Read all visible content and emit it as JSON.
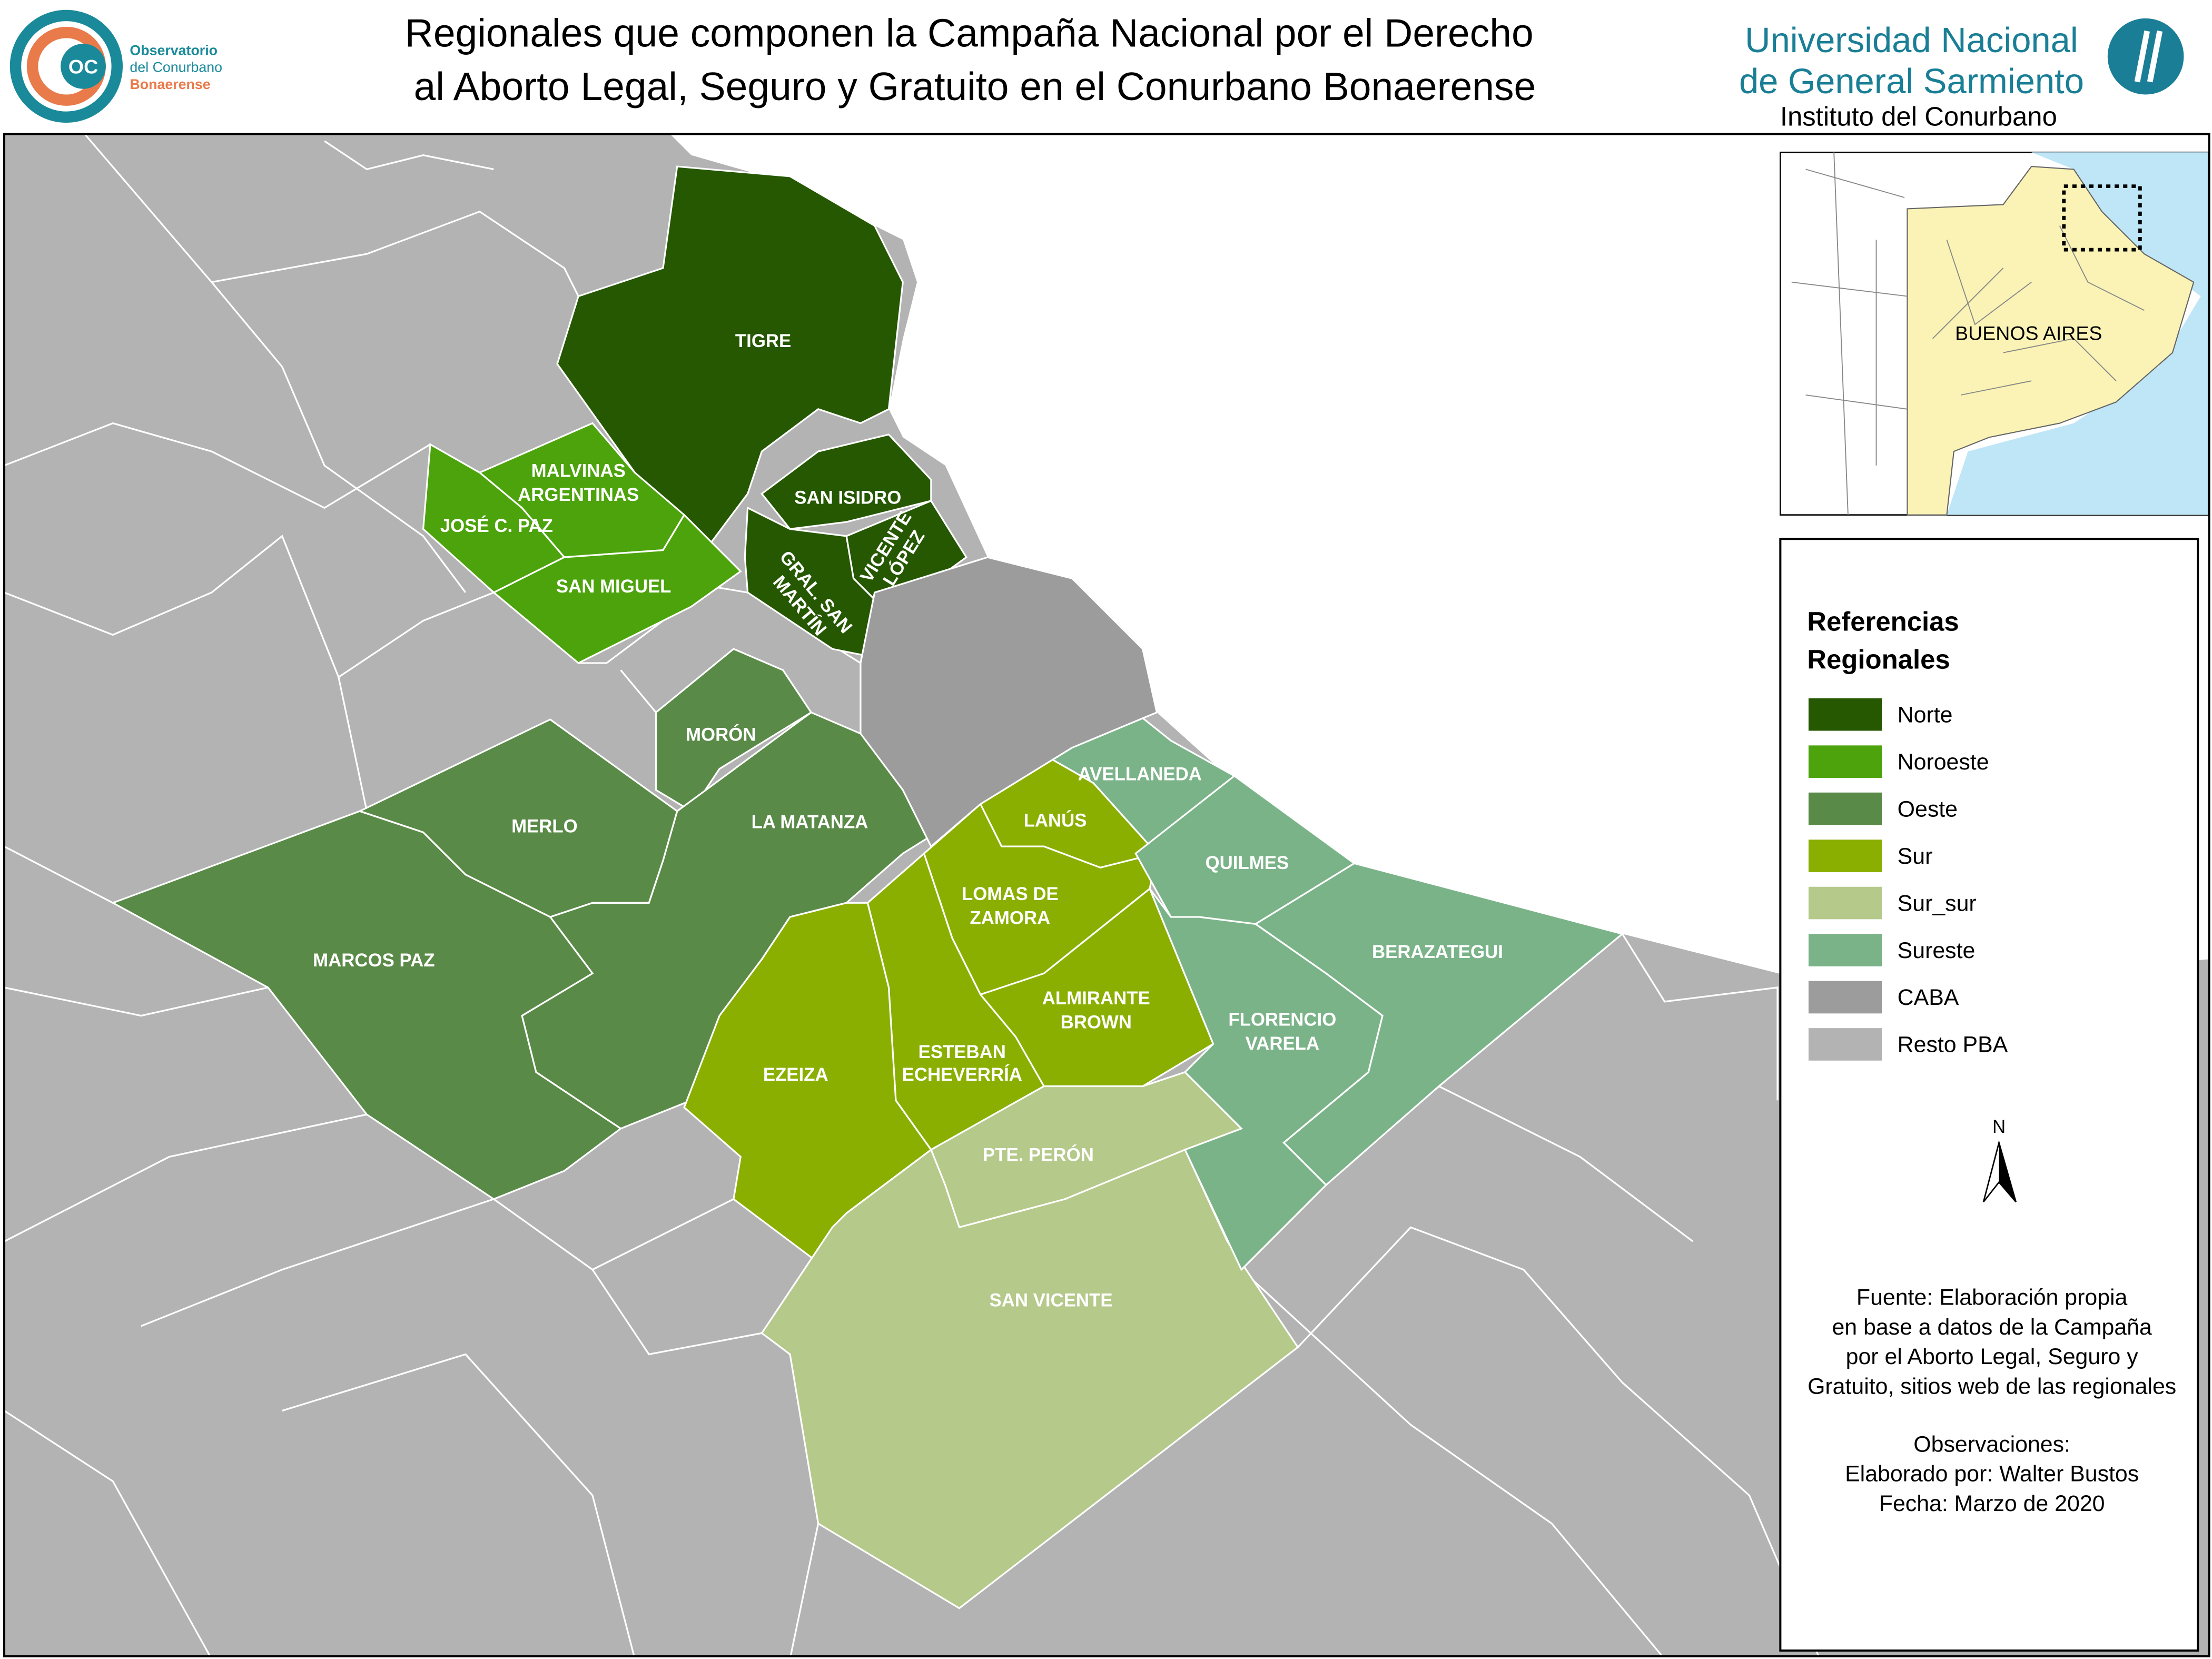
{
  "header": {
    "title": [
      "Regionales que componen la  Campaña Nacional por el Derecho",
      "al Aborto Legal, Seguro y Gratuito en el Conurbano Bonaerense"
    ],
    "logo_left": {
      "initials": "OC",
      "lines": [
        "Observatorio",
        "del Conurbano",
        "Bonaerense"
      ]
    },
    "logo_right": {
      "lines": [
        "Universidad Nacional",
        "de General Sarmiento"
      ],
      "subtitle": "Instituto del Conurbano"
    }
  },
  "map": {
    "regions": [
      {
        "label": [
          "TIGRE"
        ],
        "regional": "Norte"
      },
      {
        "label": [
          "SAN ISIDRO"
        ],
        "regional": "Norte"
      },
      {
        "label": [
          "VICENTE",
          "LÓPEZ"
        ],
        "regional": "Norte"
      },
      {
        "label": [
          "GRAL. SAN",
          "MARTÍN"
        ],
        "regional": "Norte"
      },
      {
        "label": [
          "MALVINAS",
          "ARGENTINAS"
        ],
        "regional": "Noroeste"
      },
      {
        "label": [
          "JOSÉ C. PAZ"
        ],
        "regional": "Noroeste"
      },
      {
        "label": [
          "SAN MIGUEL"
        ],
        "regional": "Noroeste"
      },
      {
        "label": [
          "MORÓN"
        ],
        "regional": "Oeste"
      },
      {
        "label": [
          "LA MATANZA"
        ],
        "regional": "Oeste"
      },
      {
        "label": [
          "MERLO"
        ],
        "regional": "Oeste"
      },
      {
        "label": [
          "MARCOS PAZ"
        ],
        "regional": "Oeste"
      },
      {
        "label": [
          "LANÚS"
        ],
        "regional": "Sur"
      },
      {
        "label": [
          "LOMAS DE",
          "ZAMORA"
        ],
        "regional": "Sur"
      },
      {
        "label": [
          "ALMIRANTE",
          "BROWN"
        ],
        "regional": "Sur"
      },
      {
        "label": [
          "ESTEBAN",
          "ECHEVERRÍA"
        ],
        "regional": "Sur"
      },
      {
        "label": [
          "EZEIZA"
        ],
        "regional": "Sur"
      },
      {
        "label": [
          "PTE. PERÓN"
        ],
        "regional": "Sur_sur"
      },
      {
        "label": [
          "SAN VICENTE"
        ],
        "regional": "Sur_sur"
      },
      {
        "label": [
          "AVELLANEDA"
        ],
        "regional": "Sureste"
      },
      {
        "label": [
          "QUILMES"
        ],
        "regional": "Sureste"
      },
      {
        "label": [
          "BERAZATEGUI"
        ],
        "regional": "Sureste"
      },
      {
        "label": [
          "FLORENCIO",
          "VARELA"
        ],
        "regional": "Sureste"
      },
      {
        "label": [],
        "regional": "CABA"
      }
    ],
    "inset_label": "BUENOS AIRES",
    "north": "N"
  },
  "legend": {
    "title": [
      "Referencias",
      "Regionales"
    ],
    "items": [
      {
        "label": "Norte",
        "color": "#255800"
      },
      {
        "label": "Noroeste",
        "color": "#4ca30b"
      },
      {
        "label": "Oeste",
        "color": "#5a8a47"
      },
      {
        "label": "Sur",
        "color": "#8aaf00"
      },
      {
        "label": "Sur_sur",
        "color": "#b5c98a"
      },
      {
        "label": "Sureste",
        "color": "#7bb389"
      },
      {
        "label": "CABA",
        "color": "#9c9c9c"
      },
      {
        "label": "Resto PBA",
        "color": "#b3b3b3"
      }
    ]
  },
  "notes": {
    "source": [
      "Fuente: Elaboración propia",
      "en base a datos de la Campaña",
      "por el Aborto Legal, Seguro y",
      "Gratuito, sitios web de las regionales"
    ],
    "observations": [
      "Observaciones:",
      "Elaborado por: Walter Bustos",
      "Fecha: Marzo de 2020"
    ]
  }
}
